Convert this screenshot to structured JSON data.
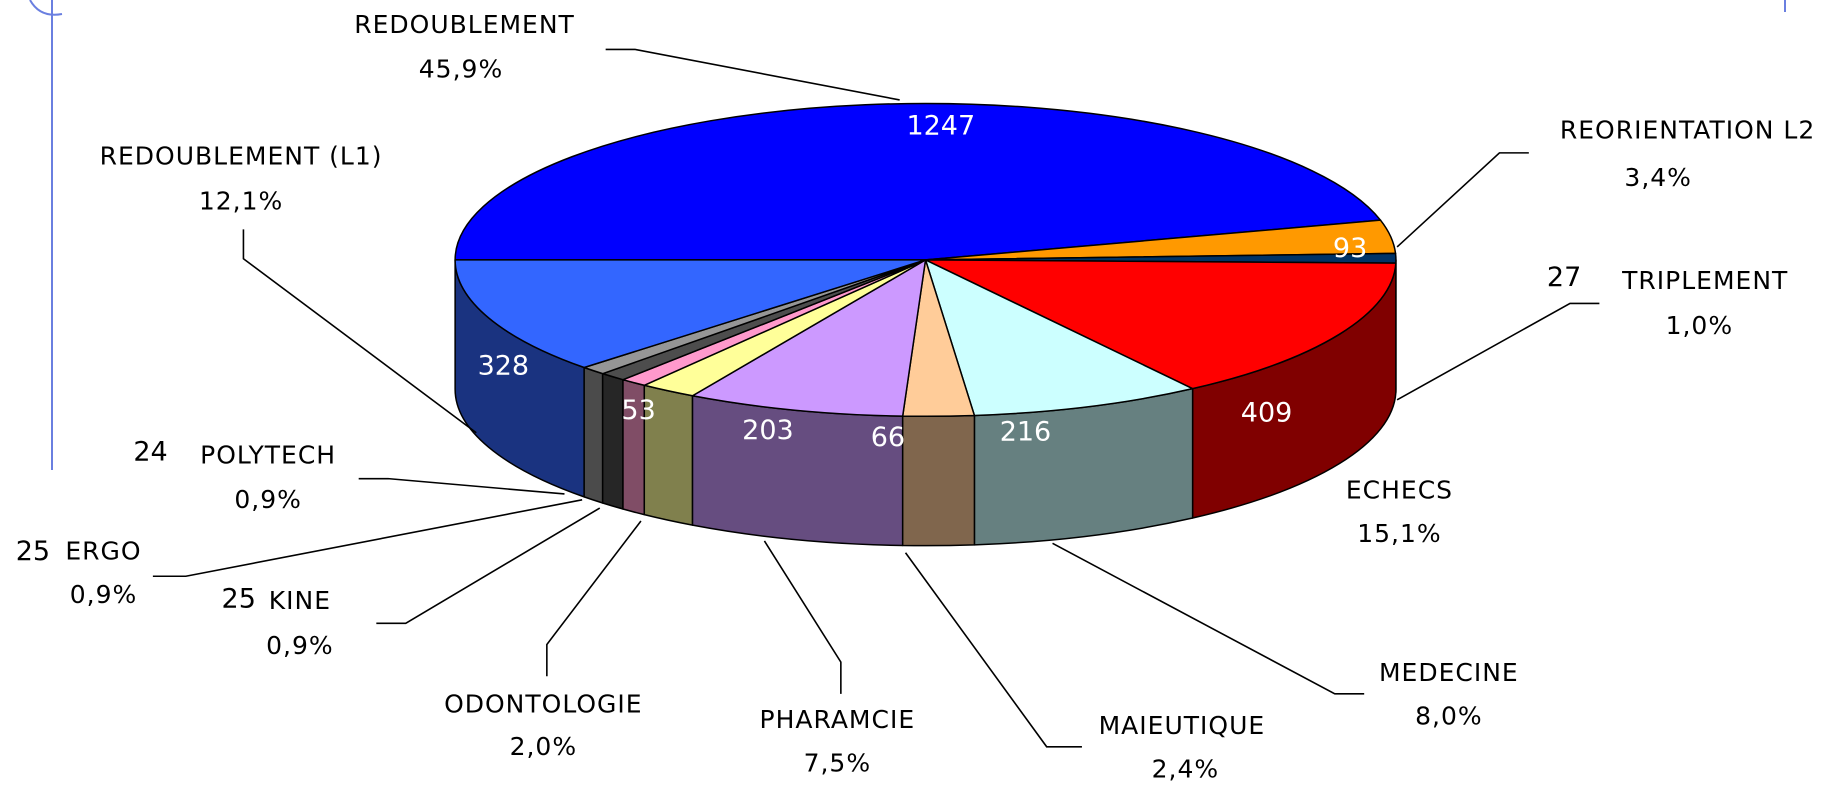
{
  "chart_data": {
    "type": "pie",
    "categories": [
      "REDOUBLEMENT",
      "REORIENTATION L2",
      "TRIPLEMENT",
      "ECHECS",
      "MEDECINE",
      "MAIEUTIQUE",
      "PHARAMCIE",
      "ODONTOLOGIE",
      "KINE",
      "ERGO",
      "POLYTECH",
      "REDOUBLEMENT (L1)"
    ],
    "values": [
      1247,
      93,
      27,
      409,
      216,
      66,
      203,
      53,
      25,
      25,
      24,
      328
    ],
    "percent_labels": [
      "45,9%",
      "3,4%",
      "1,0%",
      "15,1%",
      "8,0%",
      "2,4%",
      "7,5%",
      "2,0%",
      "0,9%",
      "0,9%",
      "0,9%",
      "12,1%"
    ],
    "colors": [
      "#0000ff",
      "#ff9900",
      "#003366",
      "#ff0000",
      "#ccffff",
      "#ffcc99",
      "#cc99ff",
      "#ffff99",
      "#ff99cc",
      "#4d4d4d",
      "#969696",
      "#3366ff"
    ],
    "side_colors": [
      "#00007f",
      "#7f4c00",
      "#001a33",
      "#800000",
      "#668080",
      "#80664d",
      "#664d80",
      "#80804d",
      "#804d66",
      "#262626",
      "#4b4b4b",
      "#1a3380"
    ]
  }
}
